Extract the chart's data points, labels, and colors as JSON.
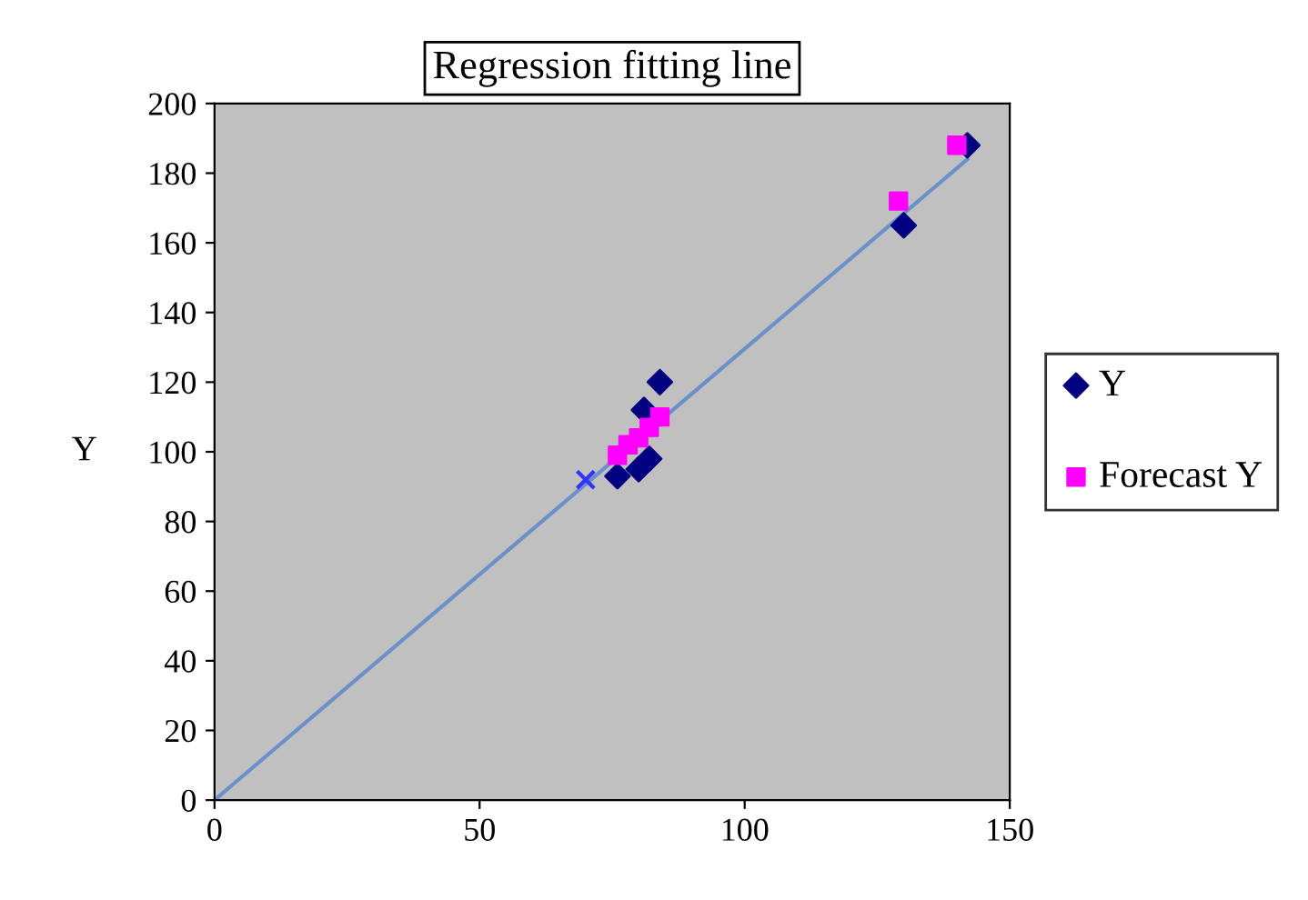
{
  "chart_data": {
    "type": "scatter",
    "title": "Regression fitting line",
    "ylabel": "Y",
    "xlim": [
      0,
      150
    ],
    "xticks": [
      0,
      50,
      100,
      150
    ],
    "ylim": [
      0,
      200
    ],
    "yticks": [
      0,
      20,
      40,
      60,
      80,
      100,
      120,
      140,
      160,
      180,
      200
    ],
    "grid": false,
    "legend": "right",
    "series": [
      {
        "name": "Y",
        "color": "#000080",
        "marker": "diamond",
        "x": [
          76,
          80,
          82,
          81,
          84,
          130,
          142
        ],
        "values": [
          93,
          95,
          98,
          112,
          120,
          165,
          188
        ]
      },
      {
        "name": "Forecast Y",
        "color": "#ff00ff",
        "marker": "square",
        "x": [
          76,
          78,
          80,
          82,
          84,
          129,
          140
        ],
        "values": [
          99,
          102,
          104,
          107,
          110,
          172,
          188
        ]
      },
      {
        "type": "line",
        "color": "#6b8fc9",
        "marker": "none",
        "x": [
          0,
          142
        ],
        "values": [
          0,
          184
        ]
      },
      {
        "color": "#3333ff",
        "marker": "cross",
        "x": [
          70
        ],
        "values": [
          92
        ]
      }
    ]
  }
}
